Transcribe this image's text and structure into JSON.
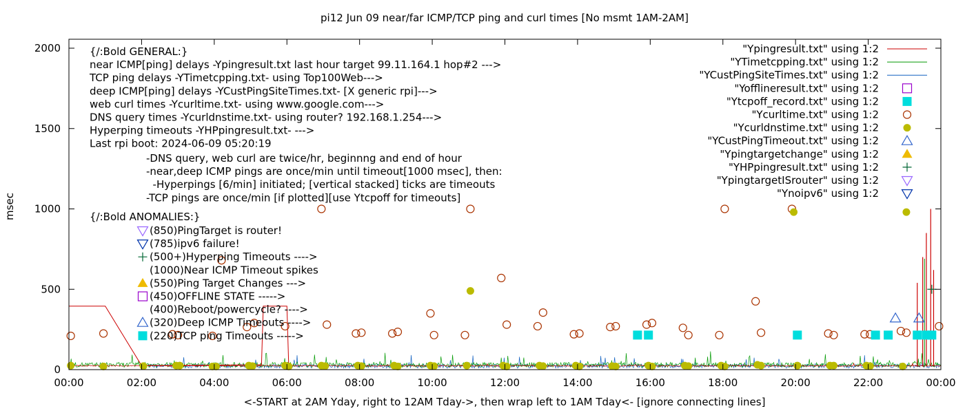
{
  "chart_data": {
    "type": "scatter",
    "title": "pi12 Jun 09  near/far ICMP/TCP ping and curl times [No msmt 1AM-2AM]",
    "xlabel": "<-START at 2AM Yday, right to 12AM Tday->, then wrap left to 1AM Tday<- [ignore connecting lines]",
    "ylabel": "msec",
    "ylim": [
      0,
      2050
    ],
    "xlim": [
      0,
      24
    ],
    "y_ticks": [
      0,
      500,
      1000,
      1500,
      2000
    ],
    "x_ticks": [
      "00:00",
      "02:00",
      "04:00",
      "06:00",
      "08:00",
      "10:00",
      "12:00",
      "14:00",
      "16:00",
      "18:00",
      "20:00",
      "22:00",
      "00:00"
    ],
    "grid": false,
    "legend_position": "top-right",
    "colors": {
      "ping": "#cc0000",
      "timetcp": "#009900",
      "custping": "#1060c0",
      "offline": "#9900cc",
      "tcpoff": "#00dddd",
      "curl": "#aa3300",
      "curldns": "#bbbb00",
      "custtimeout": "#3366cc",
      "targetchange": "#eebb00",
      "hpping": "#006633",
      "isrouter": "#9966ff",
      "noipv6": "#0033aa"
    },
    "legend": [
      {
        "label": "\"Ypingresult.txt\" using 1:2",
        "kind": "line",
        "color": "#cc0000"
      },
      {
        "label": "\"YTimetcpping.txt\" using 1:2",
        "kind": "line",
        "color": "#009900"
      },
      {
        "label": "\"YCustPingSiteTimes.txt\" using 1:2",
        "kind": "line",
        "color": "#1060c0"
      },
      {
        "label": "\"Yofflineresult.txt\" using 1:2",
        "kind": "open-square",
        "color": "#9900cc"
      },
      {
        "label": "\"Ytcpoff_record.txt\" using 1:2",
        "kind": "filled-square",
        "color": "#00dddd"
      },
      {
        "label": "\"Ycurltime.txt\" using 1:2",
        "kind": "open-circle",
        "color": "#aa3300"
      },
      {
        "label": "\"Ycurldnstime.txt\" using 1:2",
        "kind": "filled-circle",
        "color": "#bbbb00"
      },
      {
        "label": "\"YCustPingTimeout.txt\" using 1:2",
        "kind": "open-triangle",
        "color": "#3366cc"
      },
      {
        "label": "\"Ypingtargetchange\" using 1:2",
        "kind": "filled-triangle",
        "color": "#eebb00"
      },
      {
        "label": "\"YHPpingresult.txt\" using 1:2",
        "kind": "plus",
        "color": "#006633"
      },
      {
        "label": "\"YpingtargetISrouter\" using 1:2",
        "kind": "open-down-triangle",
        "color": "#9966ff"
      },
      {
        "label": "\"Ynoipv6\" using 1:2",
        "kind": "open-down-triangle",
        "color": "#0033aa"
      }
    ],
    "annotations_general": [
      "{/:Bold GENERAL:}",
      "near ICMP[ping] delays -Ypingresult.txt last hour target 99.11.164.1 hop#2 --->",
      "TCP ping delays -YTimetcpping.txt- using Top100Web--->",
      "deep ICMP[ping] delays -YCustPingSiteTimes.txt- [X generic rpi]--->",
      "web curl times -Ycurltime.txt- using www.google.com--->",
      "DNS query times -Ycurldnstime.txt- using router? 192.168.1.254--->",
      "Hyperping timeouts -YHPpingresult.txt- --->",
      "Last rpi boot: 2024-06-09 05:20:19"
    ],
    "annotations_notes": [
      "-DNS query, web curl are twice/hr, beginnng and end of hour",
      "-near,deep ICMP pings are once/min until timeout[1000 msec], then:",
      "  -Hyperpings [6/min] initiated; [vertical stacked] ticks are timeouts",
      "-TCP pings are once/min [if plotted][use Ytcpoff for timeouts]"
    ],
    "annotations_anomalies_title": "{/:Bold ANOMALIES:}",
    "annotations_anomalies": [
      {
        "text": "(850)PingTarget is router!",
        "kind": "open-down-triangle",
        "color": "#9966ff"
      },
      {
        "text": "(785)ipv6 failure!",
        "kind": "open-down-triangle",
        "color": "#0033aa"
      },
      {
        "text": "(500+)Hyperping Timeouts ---->",
        "kind": "plus",
        "color": "#006633"
      },
      {
        "text": "(1000)Near ICMP Timeout spikes",
        "kind": "none",
        "color": ""
      },
      {
        "text": "(550)Ping Target Changes --->",
        "kind": "filled-triangle",
        "color": "#eebb00"
      },
      {
        "text": "(450)OFFLINE STATE ----->",
        "kind": "open-square",
        "color": "#9900cc"
      },
      {
        "text": "(400)Reboot/powercycle? ---->",
        "kind": "none",
        "color": ""
      },
      {
        "text": "(320)Deep ICMP Timeouts ---->",
        "kind": "open-triangle",
        "color": "#3366cc"
      },
      {
        "text": "(220)TCP ping Timeouts ----->",
        "kind": "filled-square",
        "color": "#00dddd"
      }
    ],
    "series": [
      {
        "name": "\"Ycurltime.txt\" using 1:2",
        "kind": "open-circle",
        "color": "#aa3300",
        "points": [
          [
            0.05,
            210
          ],
          [
            0.95,
            225
          ],
          [
            2.85,
            220
          ],
          [
            3.0,
            215
          ],
          [
            3.95,
            210
          ],
          [
            4.2,
            680
          ],
          [
            4.9,
            265
          ],
          [
            5.1,
            290
          ],
          [
            5.95,
            270
          ],
          [
            6.95,
            1000
          ],
          [
            7.1,
            280
          ],
          [
            7.9,
            225
          ],
          [
            8.05,
            230
          ],
          [
            8.9,
            225
          ],
          [
            9.05,
            235
          ],
          [
            9.95,
            350
          ],
          [
            10.05,
            215
          ],
          [
            10.9,
            215
          ],
          [
            11.05,
            1000
          ],
          [
            11.9,
            570
          ],
          [
            12.05,
            280
          ],
          [
            12.9,
            270
          ],
          [
            13.05,
            355
          ],
          [
            13.9,
            220
          ],
          [
            14.05,
            225
          ],
          [
            14.9,
            265
          ],
          [
            15.05,
            270
          ],
          [
            15.9,
            280
          ],
          [
            16.05,
            290
          ],
          [
            16.9,
            260
          ],
          [
            17.05,
            215
          ],
          [
            17.9,
            215
          ],
          [
            18.05,
            1000
          ],
          [
            18.9,
            425
          ],
          [
            19.05,
            230
          ],
          [
            19.9,
            1000
          ],
          [
            20.05,
            215
          ],
          [
            20.9,
            225
          ],
          [
            21.05,
            215
          ],
          [
            21.9,
            220
          ],
          [
            22.05,
            220
          ],
          [
            22.9,
            240
          ],
          [
            23.05,
            230
          ],
          [
            23.95,
            270
          ]
        ]
      },
      {
        "name": "\"Ycurldnstime.txt\" using 1:2",
        "kind": "filled-circle",
        "color": "#bbbb00",
        "points": [
          [
            0.05,
            25
          ],
          [
            0.95,
            20
          ],
          [
            2.05,
            22
          ],
          [
            2.95,
            25
          ],
          [
            3.05,
            25
          ],
          [
            3.95,
            20
          ],
          [
            4.05,
            20
          ],
          [
            4.95,
            25
          ],
          [
            5.05,
            22
          ],
          [
            5.95,
            25
          ],
          [
            6.05,
            20
          ],
          [
            6.95,
            25
          ],
          [
            7.05,
            22
          ],
          [
            7.95,
            25
          ],
          [
            8.05,
            22
          ],
          [
            8.95,
            25
          ],
          [
            9.05,
            20
          ],
          [
            9.95,
            25
          ],
          [
            10.05,
            22
          ],
          [
            10.95,
            25
          ],
          [
            11.05,
            490
          ],
          [
            11.95,
            25
          ],
          [
            12.05,
            20
          ],
          [
            12.95,
            25
          ],
          [
            13.05,
            22
          ],
          [
            13.95,
            25
          ],
          [
            14.05,
            20
          ],
          [
            14.95,
            22
          ],
          [
            15.05,
            20
          ],
          [
            15.95,
            25
          ],
          [
            16.05,
            20
          ],
          [
            16.95,
            25
          ],
          [
            17.05,
            22
          ],
          [
            17.95,
            25
          ],
          [
            18.05,
            20
          ],
          [
            18.95,
            30
          ],
          [
            19.05,
            25
          ],
          [
            19.95,
            980
          ],
          [
            20.05,
            25
          ],
          [
            20.95,
            25
          ],
          [
            21.05,
            25
          ],
          [
            21.95,
            25
          ],
          [
            22.05,
            22
          ],
          [
            22.95,
            20
          ],
          [
            23.05,
            980
          ]
        ]
      },
      {
        "name": "\"Ytcpoff_record.txt\" using 1:2",
        "kind": "filled-square",
        "color": "#00dddd",
        "points": [
          [
            15.65,
            215
          ],
          [
            15.95,
            215
          ],
          [
            20.05,
            215
          ],
          [
            22.2,
            215
          ],
          [
            22.55,
            215
          ],
          [
            23.35,
            215
          ],
          [
            23.6,
            215
          ],
          [
            23.75,
            215
          ]
        ]
      },
      {
        "name": "\"YCustPingTimeout.txt\" using 1:2",
        "kind": "open-triangle",
        "color": "#3366cc",
        "points": [
          [
            22.75,
            320
          ],
          [
            23.4,
            320
          ]
        ]
      },
      {
        "name": "\"YHPpingresult.txt\" using 1:2",
        "kind": "plus",
        "color": "#006633",
        "points": [
          [
            23.75,
            500
          ]
        ]
      }
    ]
  }
}
